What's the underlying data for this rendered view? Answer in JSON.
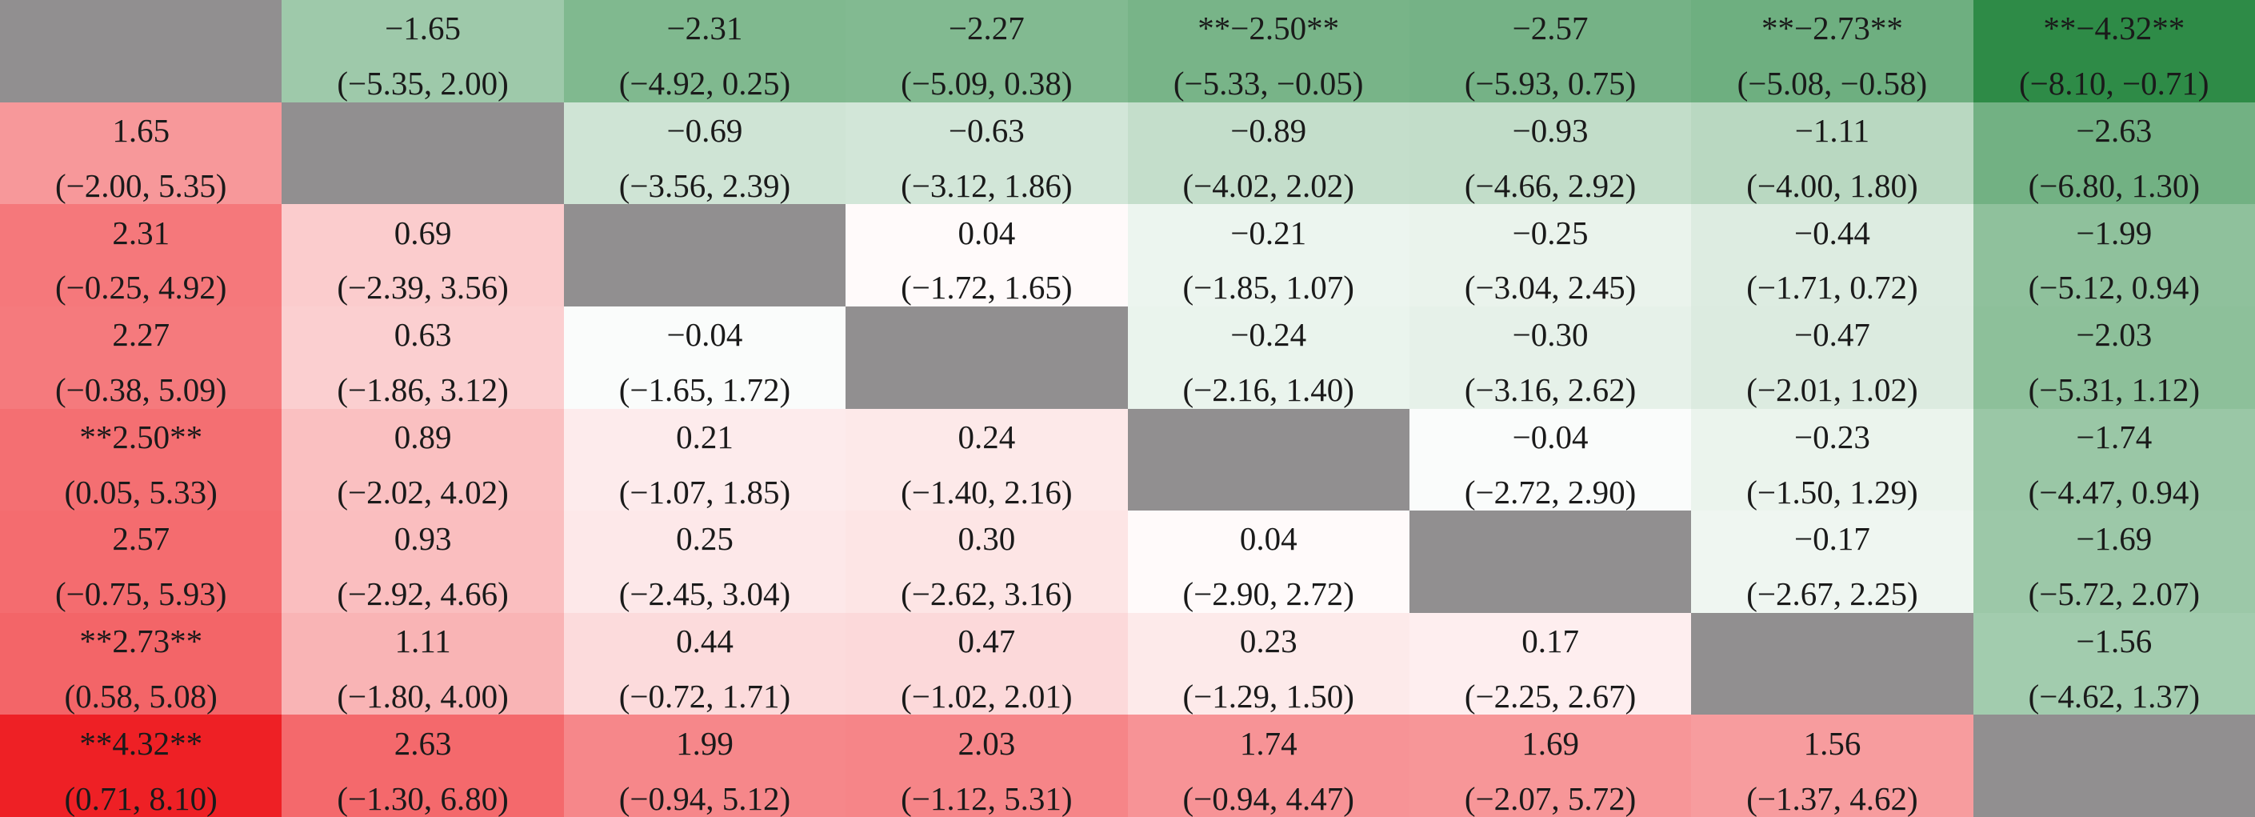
{
  "table": {
    "rows": [
      [
        null,
        {
          "value": "−1.65",
          "ci": "(−5.35, 2.00)"
        },
        {
          "value": "−2.31",
          "ci": "(−4.92, 0.25)"
        },
        {
          "value": "−2.27",
          "ci": "(−5.09, 0.38)"
        },
        {
          "value": "**−2.50**",
          "ci": "(−5.33, −0.05)"
        },
        {
          "value": "−2.57",
          "ci": "(−5.93, 0.75)"
        },
        {
          "value": "**−2.73**",
          "ci": "(−5.08, −0.58)"
        },
        {
          "value": "**−4.32**",
          "ci": "(−8.10, −0.71)"
        }
      ],
      [
        {
          "value": "1.65",
          "ci": "(−2.00, 5.35)"
        },
        null,
        {
          "value": "−0.69",
          "ci": "(−3.56, 2.39)"
        },
        {
          "value": "−0.63",
          "ci": "(−3.12, 1.86)"
        },
        {
          "value": "−0.89",
          "ci": "(−4.02, 2.02)"
        },
        {
          "value": "−0.93",
          "ci": "(−4.66, 2.92)"
        },
        {
          "value": "−1.11",
          "ci": "(−4.00, 1.80)"
        },
        {
          "value": "−2.63",
          "ci": "(−6.80, 1.30)"
        }
      ],
      [
        {
          "value": "2.31",
          "ci": "(−0.25, 4.92)"
        },
        {
          "value": "0.69",
          "ci": "(−2.39, 3.56)"
        },
        null,
        {
          "value": "0.04",
          "ci": "(−1.72, 1.65)"
        },
        {
          "value": "−0.21",
          "ci": "(−1.85, 1.07)"
        },
        {
          "value": "−0.25",
          "ci": "(−3.04, 2.45)"
        },
        {
          "value": "−0.44",
          "ci": "(−1.71, 0.72)"
        },
        {
          "value": "−1.99",
          "ci": "(−5.12, 0.94)"
        }
      ],
      [
        {
          "value": "2.27",
          "ci": "(−0.38, 5.09)"
        },
        {
          "value": "0.63",
          "ci": "(−1.86, 3.12)"
        },
        {
          "value": "−0.04",
          "ci": "(−1.65, 1.72)"
        },
        null,
        {
          "value": "−0.24",
          "ci": "(−2.16, 1.40)"
        },
        {
          "value": "−0.30",
          "ci": "(−3.16, 2.62)"
        },
        {
          "value": "−0.47",
          "ci": "(−2.01, 1.02)"
        },
        {
          "value": "−2.03",
          "ci": "(−5.31, 1.12)"
        }
      ],
      [
        {
          "value": "**2.50**",
          "ci": "(0.05, 5.33)"
        },
        {
          "value": "0.89",
          "ci": "(−2.02, 4.02)"
        },
        {
          "value": "0.21",
          "ci": "(−1.07, 1.85)"
        },
        {
          "value": "0.24",
          "ci": "(−1.40, 2.16)"
        },
        null,
        {
          "value": "−0.04",
          "ci": "(−2.72, 2.90)"
        },
        {
          "value": "−0.23",
          "ci": "(−1.50, 1.29)"
        },
        {
          "value": "−1.74",
          "ci": "(−4.47, 0.94)"
        }
      ],
      [
        {
          "value": "2.57",
          "ci": "(−0.75, 5.93)"
        },
        {
          "value": "0.93",
          "ci": "(−2.92, 4.66)"
        },
        {
          "value": "0.25",
          "ci": "(−2.45, 3.04)"
        },
        {
          "value": "0.30",
          "ci": "(−2.62, 3.16)"
        },
        {
          "value": "0.04",
          "ci": "(−2.90, 2.72)"
        },
        null,
        {
          "value": "−0.17",
          "ci": "(−2.67, 2.25)"
        },
        {
          "value": "−1.69",
          "ci": "(−5.72, 2.07)"
        }
      ],
      [
        {
          "value": "**2.73**",
          "ci": "(0.58, 5.08)"
        },
        {
          "value": "1.11",
          "ci": "(−1.80, 4.00)"
        },
        {
          "value": "0.44",
          "ci": "(−0.72, 1.71)"
        },
        {
          "value": "0.47",
          "ci": "(−1.02, 2.01)"
        },
        {
          "value": "0.23",
          "ci": "(−1.29, 1.50)"
        },
        {
          "value": "0.17",
          "ci": "(−2.25, 2.67)"
        },
        null,
        {
          "value": "−1.56",
          "ci": "(−4.62, 1.37)"
        }
      ],
      [
        {
          "value": "**4.32**",
          "ci": "(0.71, 8.10)"
        },
        {
          "value": "2.63",
          "ci": "(−1.30, 6.80)"
        },
        {
          "value": "1.99",
          "ci": "(−0.94, 5.12)"
        },
        {
          "value": "2.03",
          "ci": "(−1.12, 5.31)"
        },
        {
          "value": "1.74",
          "ci": "(−0.94, 4.47)"
        },
        {
          "value": "1.69",
          "ci": "(−2.07, 5.72)"
        },
        {
          "value": "1.56",
          "ci": "(−1.37, 4.62)"
        },
        null
      ]
    ]
  }
}
